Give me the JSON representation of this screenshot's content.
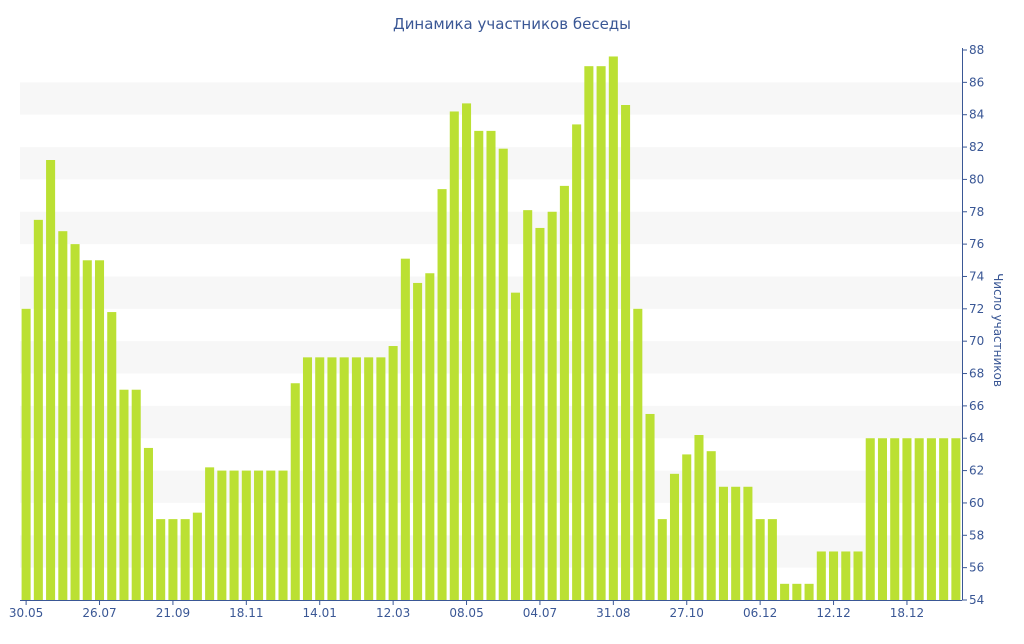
{
  "chart_data": {
    "type": "bar",
    "title": "Динамика участников беседы",
    "xlabel": "",
    "ylabel": "Число участников",
    "ylim": [
      54,
      88
    ],
    "yticks": [
      54,
      56,
      58,
      60,
      62,
      64,
      66,
      68,
      70,
      72,
      74,
      76,
      78,
      80,
      82,
      84,
      86,
      88
    ],
    "x_tick_labels": [
      {
        "index": 0,
        "label": "30.05"
      },
      {
        "index": 6,
        "label": "26.07"
      },
      {
        "index": 12,
        "label": "21.09"
      },
      {
        "index": 18,
        "label": "18.11"
      },
      {
        "index": 24,
        "label": "14.01"
      },
      {
        "index": 30,
        "label": "12.03"
      },
      {
        "index": 36,
        "label": "08.05"
      },
      {
        "index": 42,
        "label": "04.07"
      },
      {
        "index": 48,
        "label": "31.08"
      },
      {
        "index": 54,
        "label": "27.10"
      },
      {
        "index": 60,
        "label": "06.12"
      },
      {
        "index": 66,
        "label": "12.12"
      },
      {
        "index": 72,
        "label": "18.12"
      }
    ],
    "values": [
      72,
      77.5,
      81.2,
      76.8,
      76,
      75,
      75,
      71.8,
      67,
      67,
      63.4,
      59,
      59,
      59,
      59.4,
      62.2,
      62,
      62,
      62,
      62,
      62,
      62,
      67.4,
      69,
      69,
      69,
      69,
      69,
      69,
      69,
      69.7,
      75.1,
      73.6,
      74.2,
      79.4,
      84.2,
      84.7,
      83,
      83,
      81.9,
      73,
      78.1,
      77,
      78,
      79.6,
      83.4,
      87,
      87,
      87.6,
      84.6,
      72,
      65.5,
      59,
      61.8,
      63,
      64.2,
      63.2,
      61,
      61,
      61,
      59,
      59,
      55,
      55,
      55,
      57,
      57,
      57,
      57,
      64,
      64,
      64,
      64,
      64,
      64,
      64,
      64
    ],
    "bar_color": "#bbe033",
    "band_color": "#f7f7f7",
    "text_color": "#3a5795",
    "grid": "alternating horizontal bands",
    "y_axis_position": "right",
    "legend": "none"
  }
}
